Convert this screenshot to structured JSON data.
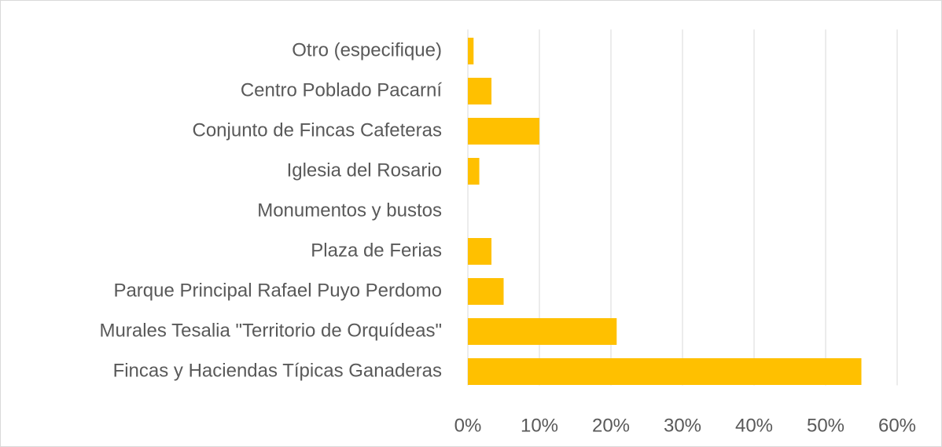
{
  "chart_data": {
    "type": "bar",
    "orientation": "horizontal",
    "categories": [
      "Otro (especifique)",
      "Centro Poblado Pacarní",
      "Conjunto de Fincas Cafeteras",
      "Iglesia del Rosario",
      "Monumentos y bustos",
      "Plaza de Ferias",
      "Parque Principal Rafael Puyo Perdomo",
      "Murales Tesalia \"Territorio de Orquídeas\"",
      "Fincas y Haciendas Típicas Ganaderas"
    ],
    "values": [
      0.8,
      3.3,
      10,
      1.6,
      0,
      3.3,
      5,
      20.8,
      55
    ],
    "color": "#ffc000",
    "xlim": [
      0,
      60
    ],
    "xticks": [
      {
        "value": 0,
        "label": "0%"
      },
      {
        "value": 10,
        "label": "10%"
      },
      {
        "value": 20,
        "label": "20%"
      },
      {
        "value": 30,
        "label": "30%"
      },
      {
        "value": 40,
        "label": "40%"
      },
      {
        "value": 50,
        "label": "50%"
      },
      {
        "value": 60,
        "label": "60%"
      }
    ],
    "grid": true
  }
}
